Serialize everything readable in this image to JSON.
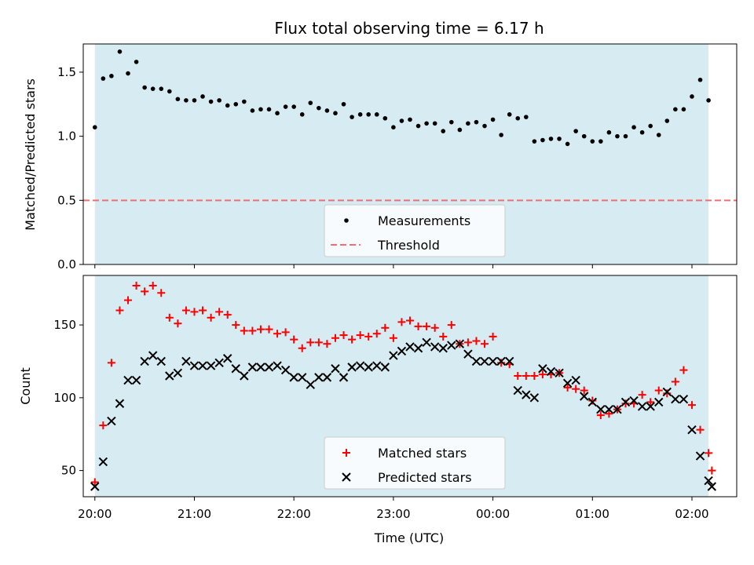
{
  "chart_data": [
    {
      "type": "scatter",
      "title": "Flux total observing time = 6.17 h",
      "xlabel": "",
      "ylabel": "Matched/Predicted stars",
      "ylim": [
        0,
        1.72
      ],
      "xlim": [
        "19:53",
        "02:27"
      ],
      "x_ticks": [
        "20:00",
        "21:00",
        "22:00",
        "23:00",
        "00:00",
        "01:00",
        "02:00"
      ],
      "y_ticks": [
        "0.0",
        "0.5",
        "1.0",
        "1.5"
      ],
      "shaded_span": [
        "20:00",
        "02:10"
      ],
      "shade_color": "#add8e6",
      "legend": {
        "placement": "lower-center",
        "entries": [
          "Measurements",
          "Threshold"
        ]
      },
      "series": [
        {
          "name": "Measurements",
          "marker": "dot",
          "color": "#000000",
          "x": [
            "20:00",
            "20:05",
            "20:10",
            "20:15",
            "20:20",
            "20:25",
            "20:30",
            "20:35",
            "20:40",
            "20:45",
            "20:50",
            "20:55",
            "21:00",
            "21:05",
            "21:10",
            "21:15",
            "21:20",
            "21:25",
            "21:30",
            "21:35",
            "21:40",
            "21:45",
            "21:50",
            "21:55",
            "22:00",
            "22:05",
            "22:10",
            "22:15",
            "22:20",
            "22:25",
            "22:30",
            "22:35",
            "22:40",
            "22:45",
            "22:50",
            "22:55",
            "23:00",
            "23:05",
            "23:10",
            "23:15",
            "23:20",
            "23:25",
            "23:30",
            "23:35",
            "23:40",
            "23:45",
            "23:50",
            "23:55",
            "00:00",
            "00:05",
            "00:10",
            "00:15",
            "00:20",
            "00:25",
            "00:30",
            "00:35",
            "00:40",
            "00:45",
            "00:50",
            "00:55",
            "01:00",
            "01:05",
            "01:10",
            "01:15",
            "01:20",
            "01:25",
            "01:30",
            "01:35",
            "01:40",
            "01:45",
            "01:50",
            "01:55",
            "02:00",
            "02:05",
            "02:10"
          ],
          "y": [
            1.07,
            1.45,
            1.47,
            1.66,
            1.49,
            1.58,
            1.38,
            1.37,
            1.37,
            1.35,
            1.29,
            1.28,
            1.28,
            1.31,
            1.27,
            1.28,
            1.24,
            1.25,
            1.27,
            1.2,
            1.21,
            1.21,
            1.18,
            1.23,
            1.23,
            1.17,
            1.26,
            1.22,
            1.2,
            1.18,
            1.25,
            1.15,
            1.17,
            1.17,
            1.17,
            1.14,
            1.07,
            1.12,
            1.13,
            1.08,
            1.1,
            1.1,
            1.04,
            1.11,
            1.05,
            1.1,
            1.11,
            1.08,
            1.13,
            1.01,
            1.17,
            1.14,
            1.15,
            0.96,
            0.97,
            0.98,
            0.98,
            0.94,
            1.04,
            1.0,
            0.96,
            0.96,
            1.03,
            1.0,
            1.0,
            1.07,
            1.03,
            1.08,
            1.01,
            1.12,
            1.21,
            1.21,
            1.31,
            1.44,
            1.28
          ]
        },
        {
          "name": "Threshold",
          "marker": "dashed-line",
          "color": "#f07070",
          "y_const": 0.5
        }
      ]
    },
    {
      "type": "scatter",
      "title": "",
      "xlabel": "Time (UTC)",
      "ylabel": "Count",
      "ylim": [
        32,
        184
      ],
      "xlim": [
        "19:53",
        "02:27"
      ],
      "x_ticks": [
        "20:00",
        "21:00",
        "22:00",
        "23:00",
        "00:00",
        "01:00",
        "02:00"
      ],
      "y_ticks": [
        "50",
        "100",
        "150"
      ],
      "shaded_span": [
        "20:00",
        "02:10"
      ],
      "shade_color": "#add8e6",
      "legend": {
        "placement": "lower-center",
        "entries": [
          "Matched stars",
          "Predicted stars"
        ]
      },
      "series": [
        {
          "name": "Matched stars",
          "marker": "plus",
          "color": "#ff0000",
          "x": [
            "20:00",
            "20:05",
            "20:10",
            "20:15",
            "20:20",
            "20:25",
            "20:30",
            "20:35",
            "20:40",
            "20:45",
            "20:50",
            "20:55",
            "21:00",
            "21:05",
            "21:10",
            "21:15",
            "21:20",
            "21:25",
            "21:30",
            "21:35",
            "21:40",
            "21:45",
            "21:50",
            "21:55",
            "22:00",
            "22:05",
            "22:10",
            "22:15",
            "22:20",
            "22:25",
            "22:30",
            "22:35",
            "22:40",
            "22:45",
            "22:50",
            "22:55",
            "23:00",
            "23:05",
            "23:10",
            "23:15",
            "23:20",
            "23:25",
            "23:30",
            "23:35",
            "23:40",
            "23:45",
            "23:50",
            "23:55",
            "00:00",
            "00:05",
            "00:10",
            "00:15",
            "00:20",
            "00:25",
            "00:30",
            "00:35",
            "00:40",
            "00:45",
            "00:50",
            "00:55",
            "01:00",
            "01:05",
            "01:10",
            "01:15",
            "01:20",
            "01:25",
            "01:30",
            "01:35",
            "01:40",
            "01:45",
            "01:50",
            "01:55",
            "02:00",
            "02:05",
            "02:10"
          ],
          "y": [
            42,
            81,
            124,
            160,
            167,
            177,
            173,
            177,
            172,
            155,
            151,
            160,
            159,
            160,
            155,
            159,
            157,
            150,
            146,
            146,
            147,
            147,
            144,
            145,
            140,
            134,
            138,
            138,
            137,
            141,
            143,
            140,
            143,
            142,
            144,
            148,
            141,
            152,
            153,
            149,
            149,
            148,
            142,
            150,
            137,
            138,
            139,
            137,
            142,
            124,
            123,
            115,
            115,
            115,
            116,
            116,
            117,
            107,
            106,
            105,
            98,
            88,
            89,
            92,
            96,
            96,
            102,
            97,
            105,
            103,
            111,
            119,
            95,
            78,
            62
          ],
          "y_tail": 50
        },
        {
          "name": "Predicted stars",
          "marker": "x",
          "color": "#000000",
          "x": [
            "20:00",
            "20:05",
            "20:10",
            "20:15",
            "20:20",
            "20:25",
            "20:30",
            "20:35",
            "20:40",
            "20:45",
            "20:50",
            "20:55",
            "21:00",
            "21:05",
            "21:10",
            "21:15",
            "21:20",
            "21:25",
            "21:30",
            "21:35",
            "21:40",
            "21:45",
            "21:50",
            "21:55",
            "22:00",
            "22:05",
            "22:10",
            "22:15",
            "22:20",
            "22:25",
            "22:30",
            "22:35",
            "22:40",
            "22:45",
            "22:50",
            "22:55",
            "23:00",
            "23:05",
            "23:10",
            "23:15",
            "23:20",
            "23:25",
            "23:30",
            "23:35",
            "23:40",
            "23:45",
            "23:50",
            "23:55",
            "00:00",
            "00:05",
            "00:10",
            "00:15",
            "00:20",
            "00:25",
            "00:30",
            "00:35",
            "00:40",
            "00:45",
            "00:50",
            "00:55",
            "01:00",
            "01:05",
            "01:10",
            "01:15",
            "01:20",
            "01:25",
            "01:30",
            "01:35",
            "01:40",
            "01:45",
            "01:50",
            "01:55",
            "02:00",
            "02:05",
            "02:10"
          ],
          "y": [
            39,
            56,
            84,
            96,
            112,
            112,
            125,
            129,
            125,
            115,
            117,
            125,
            122,
            122,
            122,
            124,
            127,
            120,
            115,
            121,
            121,
            121,
            122,
            119,
            114,
            114,
            109,
            114,
            114,
            120,
            114,
            121,
            122,
            121,
            122,
            121,
            129,
            132,
            135,
            134,
            138,
            135,
            134,
            136,
            137,
            130,
            125,
            125,
            125,
            125,
            125,
            105,
            102,
            100,
            120,
            118,
            117,
            110,
            112,
            101,
            97,
            92,
            92,
            92,
            97,
            98,
            94,
            94,
            97,
            104,
            99,
            99,
            78,
            60,
            43
          ],
          "y_tail": 39
        }
      ]
    }
  ]
}
